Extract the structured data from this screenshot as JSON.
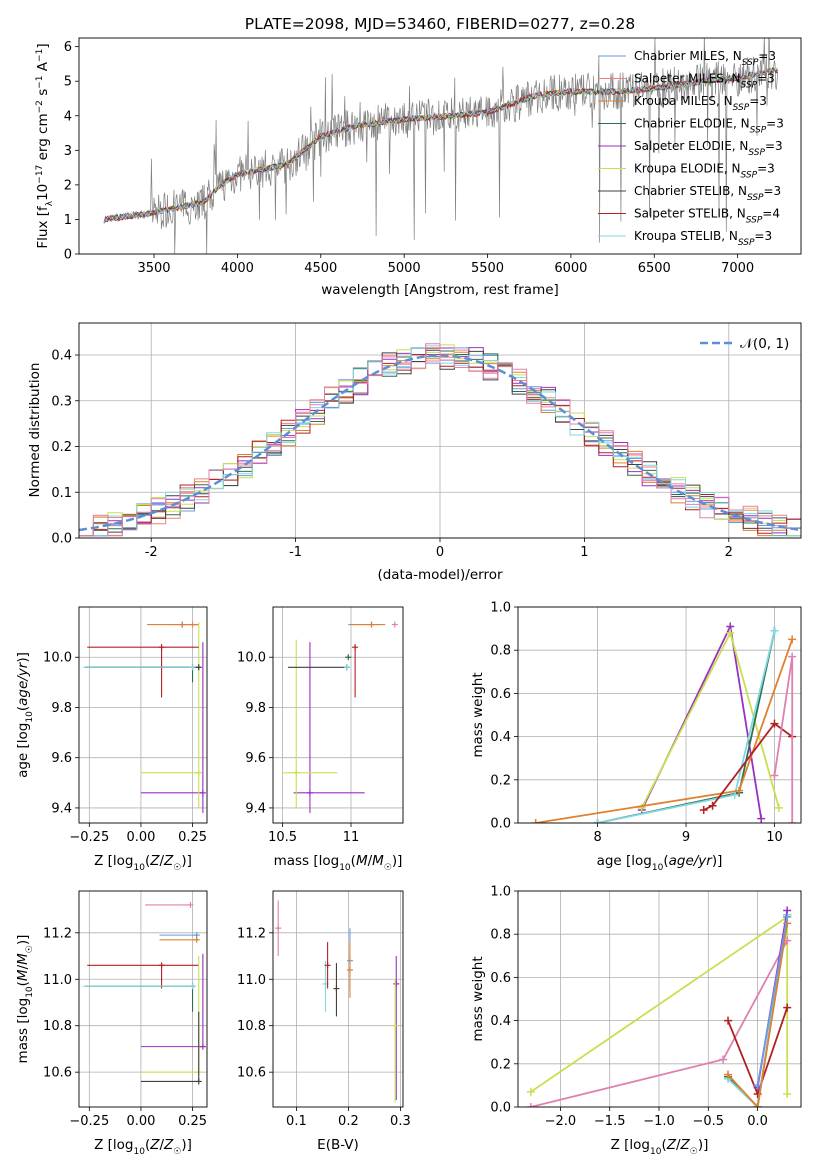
{
  "title": "PLATE=2098, MJD=53460, FIBERID=0277, z=0.28",
  "colors": {
    "chabrier_miles": "#6a9ae0",
    "salpeter_miles": "#f08080",
    "kroupa_miles": "#e08030",
    "chabrier_elodie": "#2f6f4f",
    "salpeter_elodie": "#9b30c0",
    "kroupa_elodie": "#c8e050",
    "chabrier_stelib": "#404040",
    "salpeter_stelib": "#b22020",
    "kroupa_stelib": "#80d8e0",
    "pink": "#e080b0",
    "data": "#808080",
    "grid": "#b0b0b0"
  },
  "legend_spectrum": [
    {
      "key": "chabrier_miles",
      "text": "Chabrier MILES, N",
      "sub": "SSP",
      "tail": "=3"
    },
    {
      "key": "salpeter_miles",
      "text": "Salpeter MILES, N",
      "sub": "SSP",
      "tail": "=3"
    },
    {
      "key": "kroupa_miles",
      "text": "Kroupa MILES, N",
      "sub": "SSP",
      "tail": "=3"
    },
    {
      "key": "chabrier_elodie",
      "text": "Chabrier ELODIE, N",
      "sub": "SSP",
      "tail": "=3"
    },
    {
      "key": "salpeter_elodie",
      "text": "Salpeter ELODIE, N",
      "sub": "SSP",
      "tail": "=3"
    },
    {
      "key": "kroupa_elodie",
      "text": "Kroupa ELODIE, N",
      "sub": "SSP",
      "tail": "=3"
    },
    {
      "key": "chabrier_stelib",
      "text": "Chabrier STELIB, N",
      "sub": "SSP",
      "tail": "=3"
    },
    {
      "key": "salpeter_stelib",
      "text": "Salpeter STELIB, N",
      "sub": "SSP",
      "tail": "=4"
    },
    {
      "key": "kroupa_stelib",
      "text": "Kroupa STELIB, N",
      "sub": "SSP",
      "tail": "=3"
    }
  ],
  "legend_residual": "𝒩(0, 1)",
  "chart_data": [
    {
      "id": "spectrum",
      "type": "line",
      "title": "PLATE=2098, MJD=53460, FIBERID=0277, z=0.28",
      "xlabel": "wavelength [Angstrom, rest frame]",
      "ylabel": "Flux [f_λ 10^-17 erg cm^-2 s^-1 A^-1]",
      "xlim": [
        3050,
        7380
      ],
      "ylim": [
        0,
        6.25
      ],
      "xticks": [
        3500,
        4000,
        4500,
        5000,
        5500,
        6000,
        6500,
        7000
      ],
      "yticks": [
        0,
        1,
        2,
        3,
        4,
        5,
        6
      ],
      "grid": false,
      "legend": "right",
      "x": [
        3200,
        3500,
        3800,
        3900,
        4000,
        4300,
        4500,
        4700,
        5000,
        5300,
        5500,
        5800,
        6000,
        6300,
        6500,
        6800,
        7000,
        7200
      ],
      "series": [
        {
          "key": "model",
          "values": [
            1.0,
            1.2,
            1.5,
            2.0,
            2.3,
            2.6,
            3.4,
            3.7,
            3.9,
            4.0,
            4.1,
            4.6,
            4.7,
            4.7,
            4.8,
            5.0,
            5.1,
            5.3
          ]
        }
      ]
    },
    {
      "id": "residuals",
      "type": "step",
      "xlabel": "(data-model)/error",
      "ylabel": "Normed distribution",
      "xlim": [
        -2.5,
        2.5
      ],
      "ylim": [
        0,
        0.47
      ],
      "xticks": [
        -2,
        -1,
        0,
        1,
        2
      ],
      "yticks": [
        0.0,
        0.1,
        0.2,
        0.3,
        0.4
      ],
      "grid": true,
      "legend": "top-right",
      "gaussian": {
        "name": "𝒩(0, 1)",
        "mean": 0,
        "sigma": 1
      }
    },
    {
      "id": "age_vs_Z",
      "type": "scatter",
      "xlabel": "Z [log10(Z/Z☉)]",
      "ylabel": "age [log10(age/yr)]",
      "xlim": [
        -0.3,
        0.32
      ],
      "ylim": [
        9.34,
        10.2
      ],
      "xticks": [
        -0.25,
        0.0,
        0.25
      ],
      "xtick_labels": [
        "−0.25",
        "0.00",
        "0.25"
      ],
      "yticks": [
        9.4,
        9.6,
        9.8,
        10.0
      ],
      "points": [
        {
          "key": "chabrier_miles",
          "x": 0.2,
          "y": 10.13,
          "xerr": [
            0.07,
            0.07
          ],
          "yerr": [
            0.0,
            0.0
          ]
        },
        {
          "key": "salpeter_miles",
          "x": 0.25,
          "y": 10.13,
          "xerr": [
            0.06,
            0.03
          ],
          "yerr": [
            0.0,
            0.0
          ]
        },
        {
          "key": "kroupa_miles",
          "x": 0.2,
          "y": 10.13,
          "xerr": [
            0.17,
            0.08
          ],
          "yerr": [
            0.0,
            0.0
          ]
        },
        {
          "key": "chabrier_elodie",
          "x": 0.25,
          "y": 9.96,
          "xerr": [
            0.52,
            0.0
          ],
          "yerr": [
            0.06,
            0.0
          ]
        },
        {
          "key": "salpeter_elodie",
          "x": 0.3,
          "y": 9.46,
          "xerr": [
            0.3,
            0.0
          ],
          "yerr": [
            0.08,
            0.6
          ]
        },
        {
          "key": "kroupa_elodie",
          "x": 0.28,
          "y": 9.54,
          "xerr": [
            0.28,
            0.0
          ],
          "yerr": [
            0.14,
            0.6
          ]
        },
        {
          "key": "chabrier_stelib",
          "x": 0.28,
          "y": 9.96,
          "xerr": [
            0.55,
            0.0
          ],
          "yerr": [
            0.0,
            0.0
          ]
        },
        {
          "key": "salpeter_stelib",
          "x": 0.1,
          "y": 10.04,
          "xerr": [
            0.36,
            0.18
          ],
          "yerr": [
            0.2,
            0.0
          ]
        },
        {
          "key": "kroupa_stelib",
          "x": 0.25,
          "y": 9.96,
          "xerr": [
            0.53,
            0.0
          ],
          "yerr": [
            0.0,
            0.0
          ]
        }
      ]
    },
    {
      "id": "age_vs_mass",
      "type": "scatter",
      "xlabel": "mass [log10(M/M☉)]",
      "ylabel": "",
      "xlim": [
        10.43,
        11.38
      ],
      "ylim": [
        9.34,
        10.2
      ],
      "xticks": [
        10.5,
        11.0
      ],
      "yticks": [
        9.4,
        9.6,
        9.8,
        10.0
      ],
      "points": [
        {
          "key": "chabrier_miles",
          "x": 11.15,
          "y": 10.13,
          "xerr": [
            0.17,
            0.05
          ],
          "yerr": [
            0.0,
            0.0
          ]
        },
        {
          "key": "pink",
          "x": 11.32,
          "y": 10.13,
          "xerr": [
            0.0,
            0.0
          ],
          "yerr": [
            0.0,
            0.0
          ]
        },
        {
          "key": "kroupa_miles",
          "x": 11.15,
          "y": 10.13,
          "xerr": [
            0.15,
            0.1
          ],
          "yerr": [
            0.0,
            0.0
          ]
        },
        {
          "key": "chabrier_elodie",
          "x": 10.98,
          "y": 10.0,
          "xerr": [
            0.0,
            0.0
          ],
          "yerr": [
            0.0,
            0.0
          ]
        },
        {
          "key": "salpeter_elodie",
          "x": 10.7,
          "y": 9.46,
          "xerr": [
            0.12,
            0.4
          ],
          "yerr": [
            0.08,
            0.6
          ]
        },
        {
          "key": "kroupa_elodie",
          "x": 10.6,
          "y": 9.54,
          "xerr": [
            0.1,
            0.3
          ],
          "yerr": [
            0.14,
            0.53
          ]
        },
        {
          "key": "chabrier_stelib",
          "x": 10.97,
          "y": 9.96,
          "xerr": [
            0.43,
            0.0
          ],
          "yerr": [
            0.0,
            0.0
          ]
        },
        {
          "key": "salpeter_stelib",
          "x": 11.03,
          "y": 10.04,
          "xerr": [
            0.0,
            0.0
          ],
          "yerr": [
            0.2,
            0.0
          ]
        },
        {
          "key": "kroupa_stelib",
          "x": 10.97,
          "y": 9.96,
          "xerr": [
            0.0,
            0.0
          ],
          "yerr": [
            0.0,
            0.0
          ]
        }
      ]
    },
    {
      "id": "weight_vs_age",
      "type": "line",
      "xlabel": "age [log10(age/yr)]",
      "ylabel": "mass weight",
      "xlim": [
        7.1,
        10.3
      ],
      "ylim": [
        0,
        1.0
      ],
      "xticks": [
        8,
        9,
        10
      ],
      "yticks": [
        0.0,
        0.2,
        0.4,
        0.6,
        0.8,
        1.0
      ],
      "grid": true,
      "series": [
        {
          "key": "salpeter_elodie",
          "x": [
            8.5,
            9.5,
            9.85
          ],
          "y": [
            0.06,
            0.91,
            0.02
          ]
        },
        {
          "key": "kroupa_elodie",
          "x": [
            8.5,
            9.5,
            10.05
          ],
          "y": [
            0.07,
            0.88,
            0.07
          ]
        },
        {
          "key": "chabrier_elodie",
          "x": [
            8.0,
            9.6,
            10.0
          ],
          "y": [
            0.0,
            0.14,
            0.89
          ]
        },
        {
          "key": "kroupa_stelib",
          "x": [
            8.0,
            9.55,
            10.0
          ],
          "y": [
            0.0,
            0.13,
            0.89
          ]
        },
        {
          "key": "kroupa_miles",
          "x": [
            7.3,
            9.6,
            10.2
          ],
          "y": [
            0.0,
            0.15,
            0.85
          ]
        },
        {
          "key": "salpeter_stelib",
          "x": [
            9.2,
            9.3,
            10.0,
            10.2
          ],
          "y": [
            0.06,
            0.08,
            0.46,
            0.4
          ]
        },
        {
          "key": "pink",
          "x": [
            10.0,
            10.2,
            10.2
          ],
          "y": [
            0.22,
            0.77,
            0.0
          ]
        }
      ]
    },
    {
      "id": "mass_vs_Z",
      "type": "scatter",
      "xlabel": "Z [log10(Z/Z☉)]",
      "ylabel": "mass [log10(M/M☉)]",
      "xlim": [
        -0.3,
        0.32
      ],
      "ylim": [
        10.45,
        11.38
      ],
      "xticks": [
        -0.25,
        0.0,
        0.25
      ],
      "xtick_labels": [
        "−0.25",
        "0.00",
        "0.25"
      ],
      "yticks": [
        10.6,
        10.8,
        11.0,
        11.2
      ],
      "points": [
        {
          "key": "pink",
          "x": 0.24,
          "y": 11.32,
          "xerr": [
            0.22,
            0.0
          ],
          "yerr": [
            0.0,
            0.0
          ]
        },
        {
          "key": "chabrier_miles",
          "x": 0.27,
          "y": 11.19,
          "xerr": [
            0.18,
            0.0
          ],
          "yerr": [
            0.0,
            0.0
          ]
        },
        {
          "key": "kroupa_miles",
          "x": 0.27,
          "y": 11.17,
          "xerr": [
            0.18,
            0.0
          ],
          "yerr": [
            0.0,
            0.0
          ]
        },
        {
          "key": "salpeter_stelib",
          "x": 0.1,
          "y": 11.06,
          "xerr": [
            0.36,
            0.18
          ],
          "yerr": [
            0.1,
            0.0
          ]
        },
        {
          "key": "chabrier_elodie",
          "x": 0.25,
          "y": 10.97,
          "xerr": [
            0.52,
            0.0
          ],
          "yerr": [
            0.11,
            0.0
          ]
        },
        {
          "key": "kroupa_stelib",
          "x": 0.25,
          "y": 10.97,
          "xerr": [
            0.53,
            0.0
          ],
          "yerr": [
            0.0,
            0.0
          ]
        },
        {
          "key": "salpeter_elodie",
          "x": 0.3,
          "y": 10.71,
          "xerr": [
            0.3,
            0.0
          ],
          "yerr": [
            0.0,
            0.4
          ]
        },
        {
          "key": "kroupa_elodie",
          "x": 0.28,
          "y": 10.6,
          "xerr": [
            0.28,
            0.0
          ],
          "yerr": [
            0.0,
            0.5
          ]
        },
        {
          "key": "chabrier_stelib",
          "x": 0.28,
          "y": 10.56,
          "xerr": [
            0.28,
            0.0
          ],
          "yerr": [
            0.0,
            0.3
          ]
        }
      ]
    },
    {
      "id": "mass_vs_ebv",
      "type": "scatter",
      "xlabel": "E(B-V)",
      "ylabel": "",
      "xlim": [
        0.055,
        0.305
      ],
      "ylim": [
        10.45,
        11.38
      ],
      "xticks": [
        0.1,
        0.2,
        0.3
      ],
      "yticks": [
        10.6,
        10.8,
        11.0,
        11.2
      ],
      "points": [
        {
          "key": "pink",
          "x": 0.065,
          "y": 11.22,
          "xerr": [
            0.0,
            0.0
          ],
          "yerr": [
            0.12,
            0.12
          ]
        },
        {
          "key": "kroupa_stelib",
          "x": 0.156,
          "y": 10.98,
          "xerr": [
            0.0,
            0.0
          ],
          "yerr": [
            0.12,
            0.1
          ]
        },
        {
          "key": "salpeter_stelib",
          "x": 0.16,
          "y": 11.06,
          "xerr": [
            0.0,
            0.0
          ],
          "yerr": [
            0.1,
            0.1
          ]
        },
        {
          "key": "chabrier_stelib",
          "x": 0.177,
          "y": 10.96,
          "xerr": [
            0.0,
            0.0
          ],
          "yerr": [
            0.12,
            0.11
          ]
        },
        {
          "key": "chabrier_miles",
          "x": 0.203,
          "y": 11.08,
          "xerr": [
            0.0,
            0.0
          ],
          "yerr": [
            0.12,
            0.14
          ]
        },
        {
          "key": "kroupa_miles",
          "x": 0.203,
          "y": 11.04,
          "xerr": [
            0.0,
            0.0
          ],
          "yerr": [
            0.12,
            0.12
          ]
        },
        {
          "key": "salpeter_elodie",
          "x": 0.292,
          "y": 10.98,
          "xerr": [
            0.0,
            0.0
          ],
          "yerr": [
            0.5,
            0.12
          ]
        },
        {
          "key": "kroupa_elodie",
          "x": 0.29,
          "y": 10.8,
          "xerr": [
            0.0,
            0.0
          ],
          "yerr": [
            0.33,
            0.2
          ]
        }
      ]
    },
    {
      "id": "weight_vs_Z",
      "type": "line",
      "xlabel": "Z [log10(Z/Z☉)]",
      "ylabel": "mass weight",
      "xlim": [
        -2.43,
        0.44
      ],
      "ylim": [
        0,
        1.0
      ],
      "xticks": [
        -2.0,
        -1.5,
        -1.0,
        -0.5,
        0.0
      ],
      "xtick_labels": [
        "−2.0",
        "−1.5",
        "−1.0",
        "−0.5",
        "0.0"
      ],
      "yticks": [
        0.0,
        0.2,
        0.4,
        0.6,
        0.8,
        1.0
      ],
      "grid": true,
      "series": [
        {
          "key": "kroupa_elodie",
          "x": [
            -2.3,
            0.3,
            0.3
          ],
          "y": [
            0.07,
            0.88,
            0.06
          ]
        },
        {
          "key": "pink",
          "x": [
            -2.3,
            -0.35,
            0.3
          ],
          "y": [
            0.0,
            0.22,
            0.77
          ]
        },
        {
          "key": "salpeter_stelib",
          "x": [
            -0.3,
            0.0,
            0.3
          ],
          "y": [
            0.4,
            0.06,
            0.46
          ]
        },
        {
          "key": "chabrier_elodie",
          "x": [
            -0.3,
            0.0,
            0.3
          ],
          "y": [
            0.14,
            0.0,
            0.89
          ]
        },
        {
          "key": "kroupa_stelib",
          "x": [
            -0.3,
            0.0,
            0.3
          ],
          "y": [
            0.13,
            0.0,
            0.89
          ]
        },
        {
          "key": "salpeter_elodie",
          "x": [
            0.0,
            0.3
          ],
          "y": [
            0.09,
            0.91
          ]
        },
        {
          "key": "kroupa_miles",
          "x": [
            -0.3,
            0.0,
            0.3
          ],
          "y": [
            0.15,
            0.0,
            0.85
          ]
        },
        {
          "key": "chabrier_miles",
          "x": [
            0.0,
            0.3
          ],
          "y": [
            0.1,
            0.88
          ]
        }
      ]
    }
  ]
}
